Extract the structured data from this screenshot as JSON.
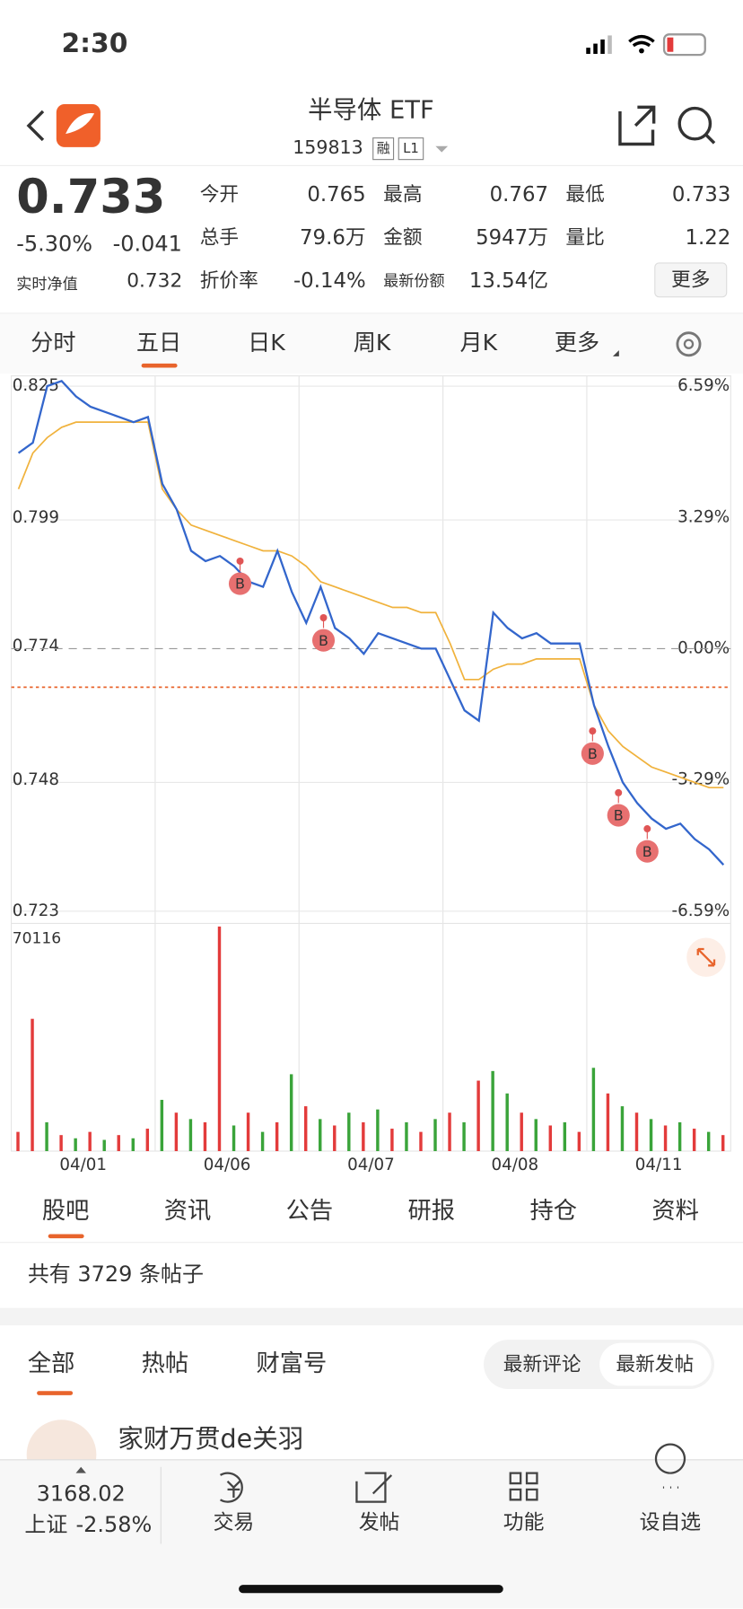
{
  "status": {
    "time": "2:30"
  },
  "header": {
    "title": "半导体 ETF",
    "code": "159813",
    "tags": [
      "融",
      "L1"
    ]
  },
  "quote": {
    "price": "0.733",
    "change_pct": "-5.30%",
    "change": "-0.041",
    "nav_label": "实时净值",
    "nav": "0.732",
    "more": "更多",
    "fields": [
      {
        "label": "今开",
        "value": "0.765"
      },
      {
        "label": "最高",
        "value": "0.767"
      },
      {
        "label": "最低",
        "value": "0.733"
      },
      {
        "label": "总手",
        "value": "79.6万"
      },
      {
        "label": "金额",
        "value": "5947万"
      },
      {
        "label": "量比",
        "value": "1.22"
      },
      {
        "label": "折价率",
        "value": "-0.14%"
      },
      {
        "label": "最新份额",
        "value": "13.54亿"
      }
    ]
  },
  "tabs": [
    "分时",
    "五日",
    "日K",
    "周K",
    "月K",
    "更多"
  ],
  "chart_data": [
    {
      "type": "line",
      "xlim": [
        0,
        5
      ],
      "xticks": [
        {
          "value": 0.5,
          "label": "04/01"
        },
        {
          "value": 1.5,
          "label": "04/06"
        },
        {
          "value": 2.5,
          "label": "04/07"
        },
        {
          "value": 3.5,
          "label": "04/08"
        },
        {
          "value": 4.5,
          "label": "04/11"
        }
      ],
      "ylim": [
        0.723,
        0.825
      ],
      "yticks": [
        0.825,
        0.799,
        0.774,
        0.748,
        0.723
      ],
      "y2lim": [
        -6.59,
        6.59
      ],
      "y2ticks": [
        {
          "value": 6.59,
          "label": "6.59%"
        },
        {
          "value": 3.29,
          "label": "3.29%"
        },
        {
          "value": 0,
          "label": "0.00%"
        },
        {
          "value": -3.29,
          "label": "-3.29%"
        },
        {
          "value": -6.59,
          "label": "-6.59%"
        }
      ],
      "prev_close": 0.774,
      "ref_line": 0.7665,
      "grid": true,
      "x": [
        0.05,
        0.15,
        0.25,
        0.35,
        0.45,
        0.55,
        0.65,
        0.75,
        0.85,
        0.95,
        1.05,
        1.15,
        1.25,
        1.35,
        1.45,
        1.55,
        1.65,
        1.75,
        1.85,
        1.95,
        2.05,
        2.15,
        2.25,
        2.35,
        2.45,
        2.55,
        2.65,
        2.75,
        2.85,
        2.95,
        3.05,
        3.15,
        3.25,
        3.35,
        3.45,
        3.55,
        3.65,
        3.75,
        3.85,
        3.95,
        4.05,
        4.15,
        4.25,
        4.35,
        4.45,
        4.55,
        4.65,
        4.75,
        4.85,
        4.95
      ],
      "series": [
        {
          "color": "#3366cc",
          "values": [
            0.812,
            0.814,
            0.825,
            0.826,
            0.823,
            0.821,
            0.82,
            0.819,
            0.818,
            0.819,
            0.806,
            0.801,
            0.793,
            0.791,
            0.792,
            0.79,
            0.787,
            0.786,
            0.793,
            0.785,
            0.779,
            0.786,
            0.778,
            0.776,
            0.773,
            0.777,
            0.776,
            0.775,
            0.774,
            0.774,
            0.768,
            0.762,
            0.76,
            0.781,
            0.778,
            0.776,
            0.777,
            0.775,
            0.775,
            0.775,
            0.763,
            0.755,
            0.748,
            0.744,
            0.741,
            0.739,
            0.74,
            0.737,
            0.735,
            0.732
          ]
        },
        {
          "color": "#f0b23c",
          "values": [
            0.805,
            0.812,
            0.815,
            0.817,
            0.818,
            0.818,
            0.818,
            0.818,
            0.818,
            0.818,
            0.805,
            0.801,
            0.798,
            0.797,
            0.796,
            0.795,
            0.794,
            0.793,
            0.793,
            0.792,
            0.79,
            0.787,
            0.786,
            0.785,
            0.784,
            0.783,
            0.782,
            0.782,
            0.781,
            0.781,
            0.775,
            0.768,
            0.768,
            0.77,
            0.771,
            0.771,
            0.772,
            0.772,
            0.772,
            0.772,
            0.763,
            0.758,
            0.755,
            0.753,
            0.751,
            0.75,
            0.749,
            0.748,
            0.747,
            0.747
          ]
        }
      ],
      "markers": [
        {
          "x": 1.59,
          "value": 0.791,
          "label": "B"
        },
        {
          "x": 2.17,
          "value": 0.78,
          "label": "B"
        },
        {
          "x": 4.04,
          "value": 0.758,
          "label": "B"
        },
        {
          "x": 4.22,
          "value": 0.746,
          "label": "B"
        },
        {
          "x": 4.42,
          "value": 0.739,
          "label": "B"
        }
      ]
    },
    {
      "type": "bar",
      "ylim": [
        0,
        70116
      ],
      "yticks": [
        70116
      ],
      "values": [
        6000,
        41300,
        9000,
        5000,
        4000,
        6000,
        3500,
        5000,
        4000,
        7000,
        16000,
        12000,
        10000,
        9000,
        70116,
        8000,
        12000,
        6000,
        9000,
        24000,
        14000,
        10000,
        8000,
        12000,
        9000,
        13000,
        7000,
        9000,
        6000,
        10000,
        12000,
        9000,
        22000,
        25000,
        18000,
        12000,
        10000,
        8000,
        9000,
        6000,
        26000,
        18000,
        14000,
        12000,
        10000,
        8000,
        9000,
        7000,
        6000,
        5000
      ],
      "colors": [
        "#e33b3b",
        "#e33b3b",
        "#3aa43a",
        "#e33b3b",
        "#3aa43a",
        "#e33b3b",
        "#3aa43a",
        "#e33b3b",
        "#3aa43a",
        "#e33b3b",
        "#3aa43a",
        "#e33b3b",
        "#3aa43a",
        "#e33b3b",
        "#e33b3b",
        "#3aa43a",
        "#e33b3b",
        "#3aa43a",
        "#e33b3b",
        "#3aa43a",
        "#e33b3b",
        "#3aa43a",
        "#e33b3b",
        "#3aa43a",
        "#e33b3b",
        "#3aa43a",
        "#e33b3b",
        "#3aa43a",
        "#e33b3b",
        "#3aa43a",
        "#e33b3b",
        "#3aa43a",
        "#e33b3b",
        "#3aa43a",
        "#3aa43a",
        "#e33b3b",
        "#3aa43a",
        "#e33b3b",
        "#3aa43a",
        "#e33b3b",
        "#3aa43a",
        "#e33b3b",
        "#3aa43a",
        "#e33b3b",
        "#3aa43a",
        "#e33b3b",
        "#3aa43a",
        "#e33b3b",
        "#3aa43a",
        "#e33b3b"
      ]
    }
  ],
  "forum": {
    "tabs": [
      "股吧",
      "资讯",
      "公告",
      "研报",
      "持仓",
      "资料"
    ],
    "count": "共有 3729 条帖子",
    "subtabs": [
      "全部",
      "热帖",
      "财富号"
    ],
    "sort": [
      "最新评论",
      "最新发帖"
    ],
    "post_user": "家财万贯de关羽"
  },
  "bottom": {
    "index_value": "3168.02",
    "index_name": "上证",
    "index_change": "-2.58%",
    "items": [
      "交易",
      "发帖",
      "功能",
      "设自选"
    ]
  }
}
